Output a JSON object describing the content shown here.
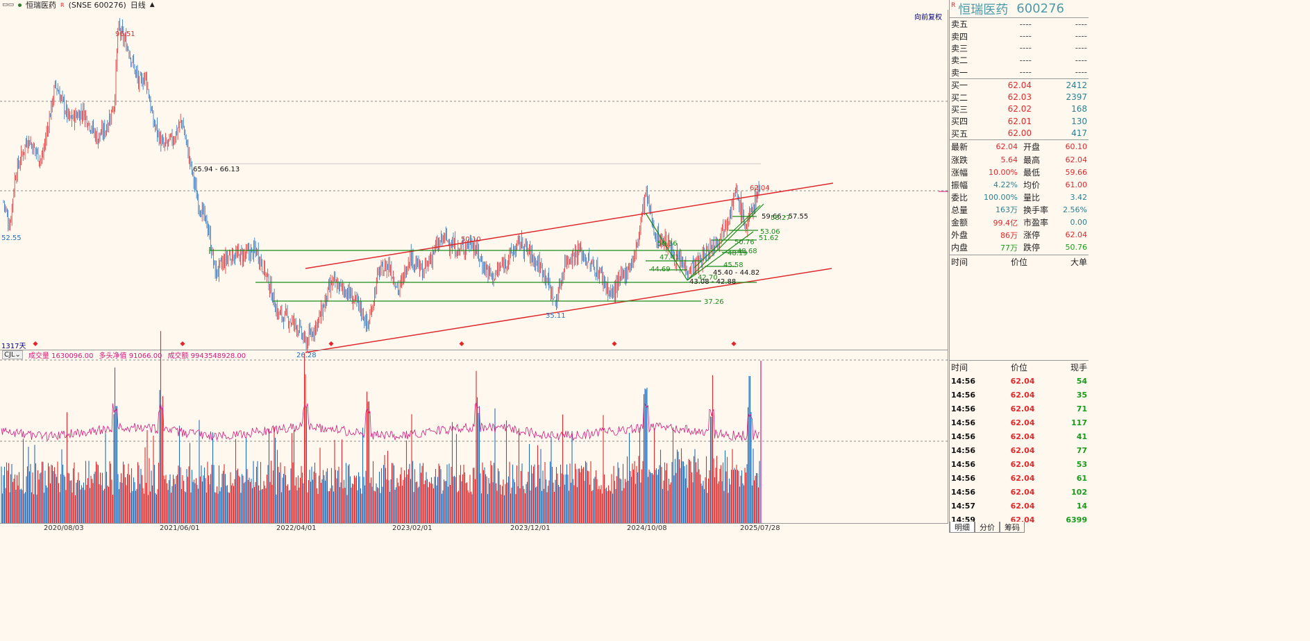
{
  "titlebar": {
    "stock_name": "恒瑞医药",
    "r_mark": "R",
    "market_code": "(SNSE 600276)",
    "period": "日线",
    "chevron": "▲"
  },
  "chart": {
    "restore_label": "向前复权",
    "day_count": "1317天",
    "labels": [
      {
        "text": "96.51",
        "color": "red"
      },
      {
        "text": "52.55",
        "color": "blue"
      },
      {
        "text": "65.94 - 66.13",
        "color": "dark"
      },
      {
        "text": "50.10",
        "color": "red"
      },
      {
        "text": "35.11",
        "color": "blue"
      },
      {
        "text": "26.28",
        "color": "blue"
      },
      {
        "text": "37.26",
        "color": "green"
      },
      {
        "text": "62.04",
        "color": "red"
      },
      {
        "text": "59.66 - 57.55",
        "color": "dark"
      },
      {
        "text": "58.27",
        "color": "green"
      },
      {
        "text": "53.06",
        "color": "green"
      },
      {
        "text": "51.62",
        "color": "green"
      },
      {
        "text": "50.36",
        "color": "green"
      },
      {
        "text": "50.76",
        "color": "green"
      },
      {
        "text": "48.68",
        "color": "green"
      },
      {
        "text": "48.19",
        "color": "green"
      },
      {
        "text": "47.41",
        "color": "green"
      },
      {
        "text": "45.58",
        "color": "green"
      },
      {
        "text": "44.69",
        "color": "green"
      },
      {
        "text": "45.40 - 44.82",
        "color": "dark"
      },
      {
        "text": "42.70",
        "color": "green"
      },
      {
        "text": "43.08 - 42.88",
        "color": "dark"
      }
    ]
  },
  "indicator": {
    "name": "CJL",
    "volume": "成交量 1630096.00",
    "net_long": "多头净值 91066.00",
    "turnover": "成交额 9943548928.00"
  },
  "xaxis": [
    "2020/08/03",
    "2021/06/01",
    "2022/04/01",
    "2023/02/01",
    "2023/12/01",
    "2024/10/08",
    "2025/07/28"
  ],
  "quote": {
    "r_mark": "R",
    "name": "恒瑞医药",
    "code": "600276",
    "asks": [
      {
        "label": "卖五",
        "price": "----",
        "vol": "----"
      },
      {
        "label": "卖四",
        "price": "----",
        "vol": "----"
      },
      {
        "label": "卖三",
        "price": "----",
        "vol": "----"
      },
      {
        "label": "卖二",
        "price": "----",
        "vol": "----"
      },
      {
        "label": "卖一",
        "price": "----",
        "vol": "----"
      }
    ],
    "bids": [
      {
        "label": "买一",
        "price": "62.04",
        "vol": "2412"
      },
      {
        "label": "买二",
        "price": "62.03",
        "vol": "2397"
      },
      {
        "label": "买三",
        "price": "62.02",
        "vol": "168"
      },
      {
        "label": "买四",
        "price": "62.01",
        "vol": "130"
      },
      {
        "label": "买五",
        "price": "62.00",
        "vol": "417"
      }
    ],
    "stats": [
      {
        "l1": "最新",
        "v1": "62.04",
        "c1": "red",
        "l2": "开盘",
        "v2": "60.10",
        "c2": "red"
      },
      {
        "l1": "涨跌",
        "v1": "5.64",
        "c1": "red",
        "l2": "最高",
        "v2": "62.04",
        "c2": "red"
      },
      {
        "l1": "涨幅",
        "v1": "10.00%",
        "c1": "red",
        "l2": "最低",
        "v2": "59.66",
        "c2": "red"
      },
      {
        "l1": "振幅",
        "v1": "4.22%",
        "c1": "teal",
        "l2": "均价",
        "v2": "61.00",
        "c2": "red"
      },
      {
        "l1": "委比",
        "v1": "100.00%",
        "c1": "teal",
        "l2": "量比",
        "v2": "3.42",
        "c2": "teal"
      },
      {
        "l1": "总量",
        "v1": "163万",
        "c1": "teal",
        "l2": "换手率",
        "v2": "2.56%",
        "c2": "teal"
      },
      {
        "l1": "金额",
        "v1": "99.4亿",
        "c1": "red",
        "l2": "市盈率",
        "v2": "0.00",
        "c2": "teal"
      },
      {
        "l1": "外盘",
        "v1": "86万",
        "c1": "red",
        "l2": "涨停",
        "v2": "62.04",
        "c2": "red"
      },
      {
        "l1": "内盘",
        "v1": "77万",
        "c1": "green",
        "l2": "跌停",
        "v2": "50.76",
        "c2": "green"
      }
    ],
    "big_order_head": [
      "时间",
      "价位",
      "大单"
    ],
    "tick_head": [
      "时间",
      "价位",
      "现手"
    ],
    "ticks": [
      {
        "t": "14:56",
        "p": "62.04",
        "v": "54"
      },
      {
        "t": "14:56",
        "p": "62.04",
        "v": "35"
      },
      {
        "t": "14:56",
        "p": "62.04",
        "v": "71"
      },
      {
        "t": "14:56",
        "p": "62.04",
        "v": "117"
      },
      {
        "t": "14:56",
        "p": "62.04",
        "v": "41"
      },
      {
        "t": "14:56",
        "p": "62.04",
        "v": "77"
      },
      {
        "t": "14:56",
        "p": "62.04",
        "v": "53"
      },
      {
        "t": "14:56",
        "p": "62.04",
        "v": "61"
      },
      {
        "t": "14:56",
        "p": "62.04",
        "v": "102"
      },
      {
        "t": "14:57",
        "p": "62.04",
        "v": "14"
      },
      {
        "t": "14:59",
        "p": "62.04",
        "v": "6399"
      }
    ],
    "tabs": [
      "明细",
      "分价",
      "筹码"
    ]
  },
  "colors": {
    "up": "#e0282a",
    "down": "#1f6fbf",
    "line_green": "#1a8a1a",
    "channel_red": "#e0282a",
    "magenta": "#d4197a"
  }
}
